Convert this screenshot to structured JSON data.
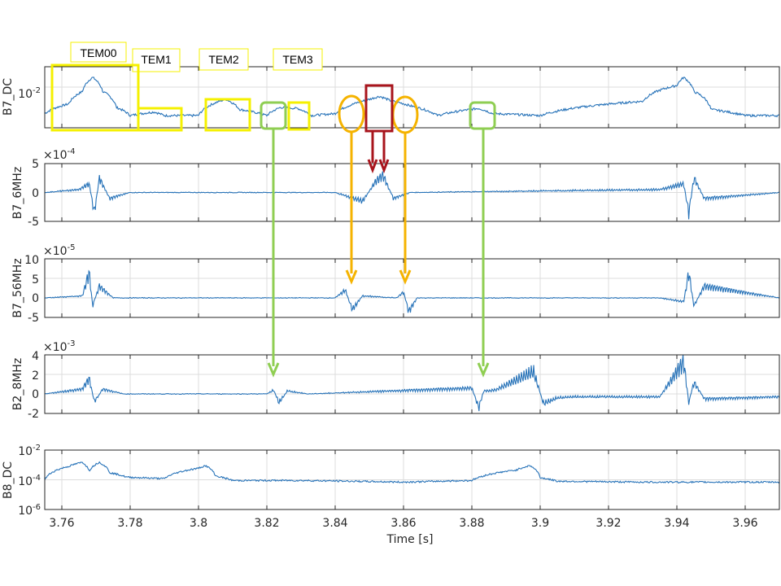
{
  "colors": {
    "line": "#2672b8",
    "grid": "#dcdcdc",
    "axis": "#262626",
    "yellow": "#f5f000",
    "orange": "#f5b300",
    "green": "#8fce52",
    "darkred": "#a8141c"
  },
  "chart_data": [
    {
      "type": "line",
      "panel": "B7_DC",
      "ylabel": "B7_DC",
      "yscale": "log",
      "ytick_labels": [
        "10^-2"
      ],
      "xlim": [
        3.755,
        3.97
      ],
      "series": [
        {
          "x": [
            3.755,
            3.762,
            3.766,
            3.769,
            3.772,
            3.776,
            3.78,
            3.787,
            3.79,
            3.8,
            3.808,
            3.812,
            3.82,
            3.824,
            3.829,
            3.833,
            3.84,
            3.845,
            3.85,
            3.853,
            3.856,
            3.862,
            3.87,
            3.882,
            3.886,
            3.9,
            3.93,
            3.94,
            3.942,
            3.945,
            3.95,
            3.96,
            3.97
          ],
          "y": [
            0.0005,
            0.0015,
            0.006,
            0.03,
            0.006,
            0.001,
            0.0004,
            0.0006,
            0.0004,
            0.0004,
            0.0025,
            0.0008,
            0.0004,
            0.001,
            0.0009,
            0.0004,
            0.0005,
            0.0014,
            0.0025,
            0.0035,
            0.0022,
            0.0012,
            0.0004,
            0.0009,
            0.0005,
            0.0004,
            0.002,
            0.012,
            0.03,
            0.006,
            0.0008,
            0.0004,
            0.0004
          ]
        }
      ]
    },
    {
      "type": "line",
      "panel": "B7_6MHz",
      "ylabel": "B7_6MHz",
      "multiplier": "×10^-4",
      "ytick_labels": [
        "5",
        "0",
        "-5"
      ],
      "ylim": [
        -5,
        5
      ],
      "xlim": [
        3.755,
        3.97
      ],
      "series": [
        {
          "x": [
            3.755,
            3.765,
            3.768,
            3.7695,
            3.771,
            3.774,
            3.78,
            3.84,
            3.848,
            3.852,
            3.854,
            3.857,
            3.862,
            3.935,
            3.942,
            3.9435,
            3.945,
            3.948,
            3.97
          ],
          "y": [
            0,
            0.5,
            1.5,
            -3.5,
            2.5,
            -1,
            0,
            0,
            -1.5,
            2,
            3,
            -1,
            0,
            0.5,
            1.5,
            -3.5,
            2.5,
            -1,
            0
          ]
        }
      ]
    },
    {
      "type": "line",
      "panel": "B7_56MHz",
      "ylabel": "B7_56MHz",
      "multiplier": "×10^-5",
      "ytick_labels": [
        "10",
        "5",
        "0",
        "-5"
      ],
      "ylim": [
        -5,
        10
      ],
      "xlim": [
        3.755,
        3.97
      ],
      "series": [
        {
          "x": [
            3.755,
            3.766,
            3.768,
            3.769,
            3.771,
            3.775,
            3.84,
            3.843,
            3.845,
            3.848,
            3.858,
            3.86,
            3.8615,
            3.864,
            3.935,
            3.942,
            3.9435,
            3.945,
            3.948,
            3.97
          ],
          "y": [
            0,
            0.5,
            6.5,
            -2,
            3,
            0,
            0,
            2,
            -3,
            0.5,
            0,
            1.5,
            -3.5,
            0,
            0,
            -1,
            6.5,
            -2,
            3,
            0
          ]
        }
      ]
    },
    {
      "type": "line",
      "panel": "B2_8MHz",
      "ylabel": "B2_8MHz",
      "multiplier": "×10^-3",
      "ytick_labels": [
        "4",
        "2",
        "0",
        "-2"
      ],
      "ylim": [
        -2,
        4
      ],
      "xlim": [
        3.755,
        3.97
      ],
      "series": [
        {
          "x": [
            3.755,
            3.766,
            3.768,
            3.7695,
            3.772,
            3.778,
            3.82,
            3.822,
            3.8235,
            3.826,
            3.832,
            3.88,
            3.882,
            3.8835,
            3.887,
            3.898,
            3.901,
            3.905,
            3.91,
            3.935,
            3.942,
            3.9435,
            3.945,
            3.948,
            3.97
          ],
          "y": [
            0,
            0.5,
            1.6,
            -0.8,
            0.5,
            0,
            0,
            0.4,
            -0.9,
            0.3,
            0,
            0.6,
            -1.4,
            0.3,
            0.4,
            2.3,
            -1,
            -0.4,
            -0.3,
            -0.3,
            3.3,
            -0.9,
            1.2,
            -0.5,
            -0.3
          ]
        }
      ]
    },
    {
      "type": "line",
      "panel": "B8_DC",
      "ylabel": "B8_DC",
      "yscale": "log",
      "ytick_labels": [
        "10^-2",
        "10^-4",
        "10^-6"
      ],
      "ylim": [
        1e-06,
        0.01
      ],
      "xlim": [
        3.755,
        3.97
      ],
      "series": [
        {
          "x": [
            3.755,
            3.762,
            3.766,
            3.768,
            3.771,
            3.774,
            3.779,
            3.79,
            3.8,
            3.802,
            3.805,
            3.81,
            3.83,
            3.86,
            3.88,
            3.893,
            3.897,
            3.9,
            3.905,
            3.93,
            3.97
          ],
          "y": [
            0.0001,
            0.0008,
            0.0015,
            0.0004,
            0.0015,
            0.0003,
            0.00015,
            0.00012,
            0.0006,
            0.0009,
            0.00018,
            9e-05,
            9e-05,
            7e-05,
            9e-05,
            0.00045,
            0.0009,
            0.00014,
            8e-05,
            7e-05,
            7e-05
          ]
        }
      ]
    }
  ],
  "x_axis": {
    "label": "Time [s]",
    "ticks": [
      3.76,
      3.78,
      3.8,
      3.82,
      3.84,
      3.86,
      3.88,
      3.9,
      3.92,
      3.94,
      3.96
    ],
    "tick_labels": [
      "3.76",
      "3.78",
      "3.8",
      "3.82",
      "3.84",
      "3.86",
      "3.88",
      "3.9",
      "3.92",
      "3.94",
      "3.96"
    ]
  },
  "annotations": {
    "labels": [
      "TEM00",
      "TEM1",
      "TEM2",
      "TEM3"
    ]
  }
}
